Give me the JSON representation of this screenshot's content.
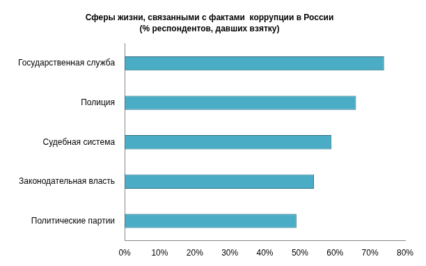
{
  "chart_data": {
    "type": "bar",
    "orientation": "horizontal",
    "title": "Сферы жизни, связанными с фактами  коррупции в России",
    "subtitle": "(% респондентов, давших взятку)",
    "categories": [
      "Государственная служба",
      "Полиция",
      "Судебная система",
      "Законодательная власть",
      "Политические партии"
    ],
    "values": [
      74,
      66,
      59,
      54,
      49
    ],
    "color": "#4bacc6",
    "xlim": [
      0,
      80
    ],
    "xticks": [
      {
        "value": 0,
        "label": "0%"
      },
      {
        "value": 10,
        "label": "10%"
      },
      {
        "value": 20,
        "label": "20%"
      },
      {
        "value": 30,
        "label": "30%"
      },
      {
        "value": 40,
        "label": "40%"
      },
      {
        "value": 50,
        "label": "50%"
      },
      {
        "value": 60,
        "label": "60%"
      },
      {
        "value": 70,
        "label": "70%"
      },
      {
        "value": 80,
        "label": "80%"
      }
    ],
    "grid": false
  }
}
